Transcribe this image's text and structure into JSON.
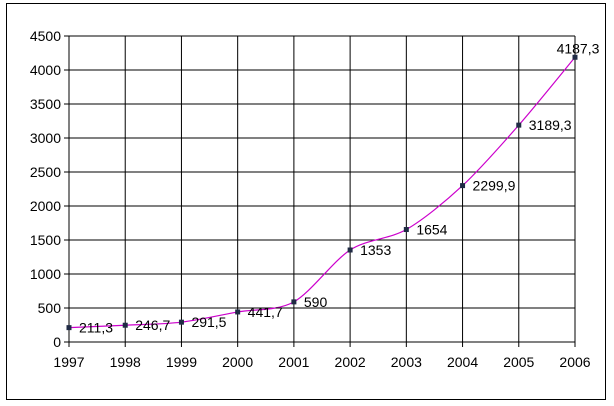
{
  "chart_data": {
    "type": "line",
    "title": "",
    "xlabel": "",
    "ylabel": "",
    "x": [
      "1997",
      "1998",
      "1999",
      "2000",
      "2001",
      "2002",
      "2003",
      "2004",
      "2005",
      "2006"
    ],
    "series": [
      {
        "values": [
          211.3,
          246.7,
          291.5,
          441.7,
          590,
          1353,
          1654,
          2299.9,
          3189.3,
          4187.3
        ],
        "labels": [
          "211,3",
          "246,7",
          "291,5",
          "441,7",
          "590",
          "1353",
          "1654",
          "2299,9",
          "3189,3",
          "4187,3"
        ],
        "line_color": "#cc00cc",
        "marker_color": "#1f2a44"
      }
    ],
    "ylim": [
      0,
      4500
    ],
    "y_ticks": [
      0,
      500,
      1000,
      1500,
      2000,
      2500,
      3000,
      3500,
      4000,
      4500
    ],
    "grid": true,
    "legend": "none"
  }
}
